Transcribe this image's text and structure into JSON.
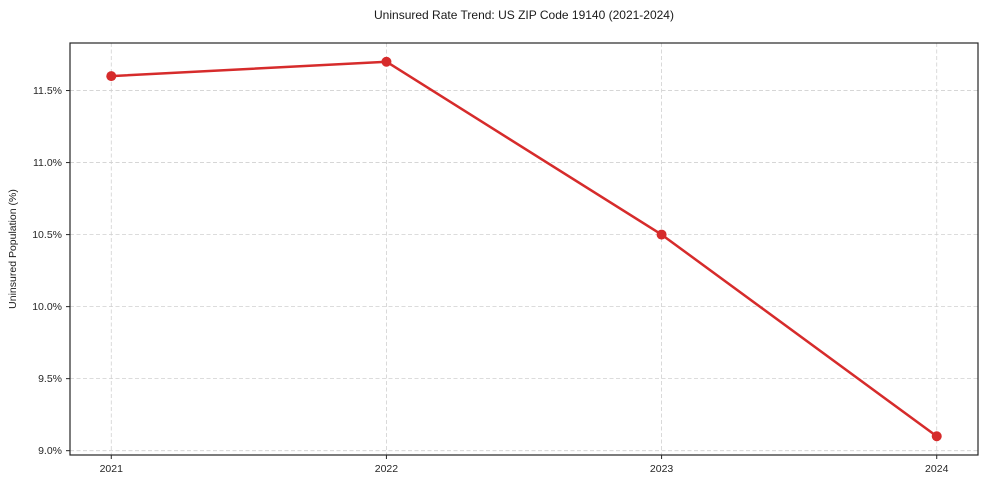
{
  "chart_data": {
    "type": "line",
    "title": "Uninsured Rate Trend: US ZIP Code 19140 (2021-2024)",
    "xlabel": "",
    "ylabel": "Uninsured Population (%)",
    "x": [
      2021,
      2022,
      2023,
      2024
    ],
    "x_tick_labels": [
      "2021",
      "2022",
      "2023",
      "2024"
    ],
    "series": [
      {
        "name": "Uninsured rate",
        "values": [
          11.6,
          11.7,
          10.5,
          9.1
        ]
      }
    ],
    "y_ticks": [
      9.0,
      9.5,
      10.0,
      10.5,
      11.0,
      11.5
    ],
    "y_tick_labels": [
      "9.0%",
      "9.5%",
      "10.0%",
      "10.5%",
      "11.0%",
      "11.5%"
    ],
    "xlim": [
      2020.85,
      2024.15
    ],
    "ylim": [
      8.97,
      11.83
    ],
    "grid": true,
    "grid_style": "dashed",
    "legend": "none",
    "colors": {
      "line": "#d62b2b",
      "marker": "#d62b2b",
      "grid": "#d0d0d0",
      "spine": "#262626",
      "text": "#1a1a1a",
      "background": "#ffffff"
    }
  }
}
